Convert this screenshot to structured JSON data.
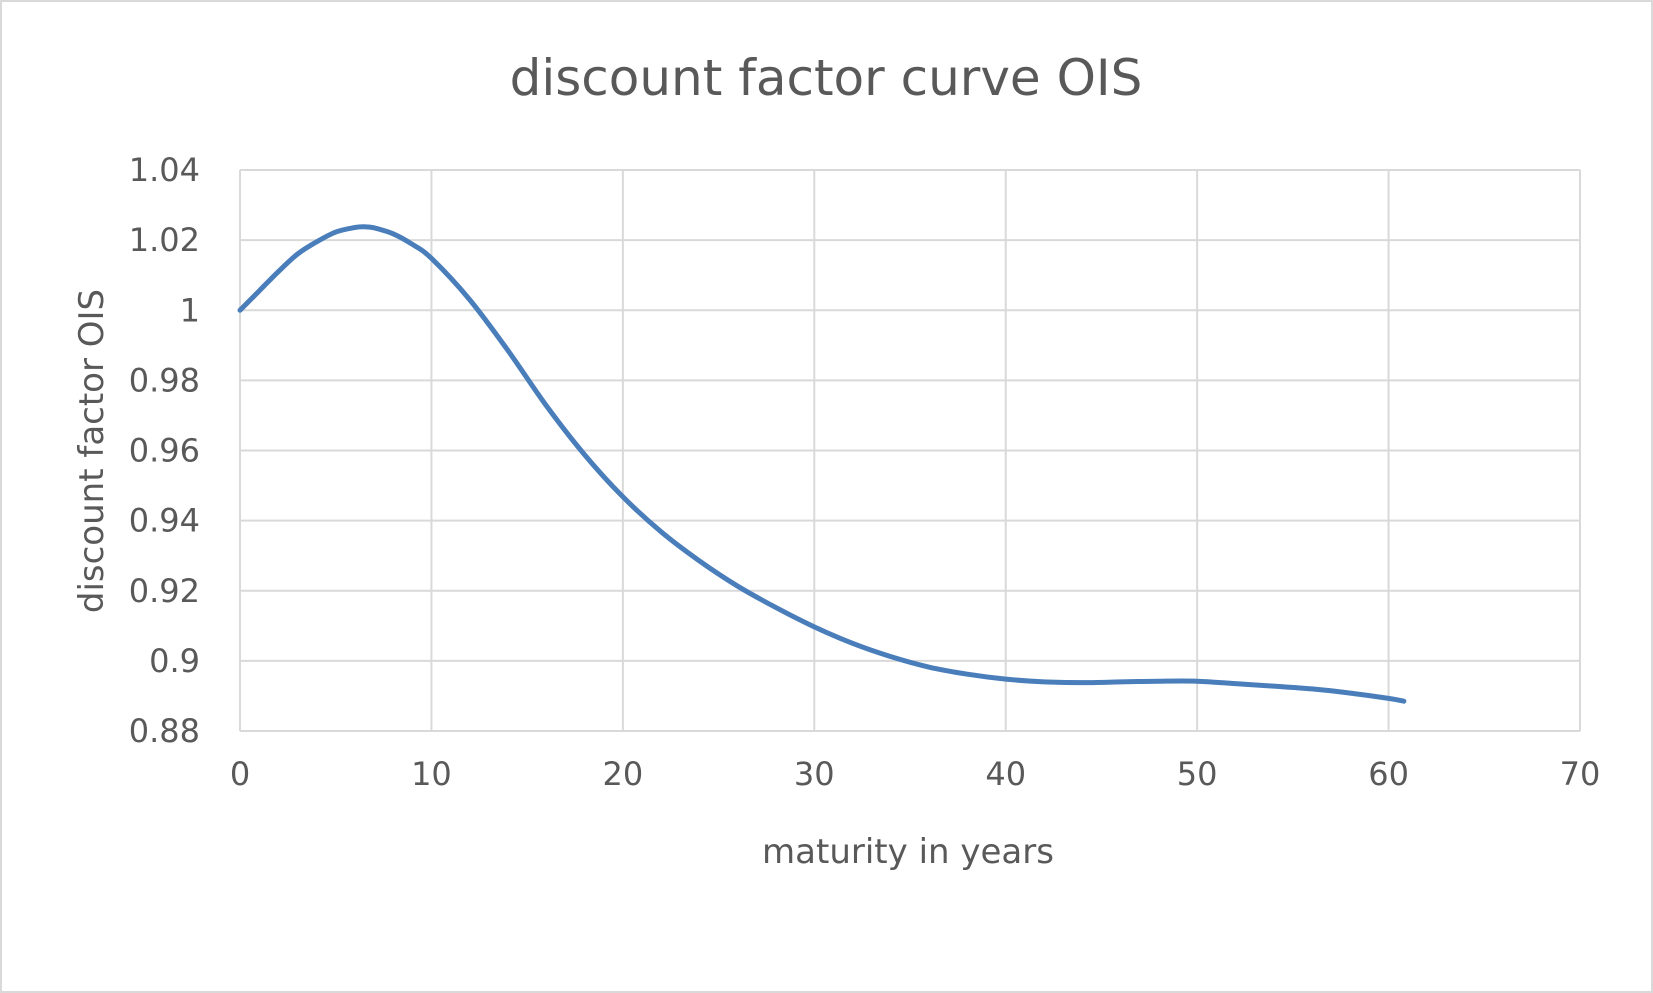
{
  "chart_data": {
    "type": "line",
    "title": "discount factor curve OIS",
    "xlabel": "maturity in years",
    "ylabel": "discount factor OIS",
    "xlim": [
      0,
      70
    ],
    "ylim": [
      0.88,
      1.04
    ],
    "x_ticks": [
      "0",
      "10",
      "20",
      "30",
      "40",
      "50",
      "60",
      "70"
    ],
    "y_ticks": [
      "1.04",
      "1.02",
      "1",
      "0.98",
      "0.96",
      "0.94",
      "0.92",
      "0.9",
      "0.88"
    ],
    "grid": true,
    "legend": "none",
    "line_color": "#4a7ebb",
    "grid_color": "#d9d9d9",
    "text_color": "#595959",
    "series": [
      {
        "x": [
          0,
          1,
          2,
          3,
          4,
          5,
          6,
          6.5,
          7,
          8,
          9,
          10,
          12,
          14,
          16,
          18,
          20,
          22,
          24,
          26,
          28,
          30,
          32,
          34,
          36,
          38,
          40,
          42,
          44,
          46,
          48,
          50,
          52,
          54,
          56,
          58,
          60,
          60.8
        ],
        "y": [
          1.0,
          1.0055,
          1.011,
          1.016,
          1.0195,
          1.0223,
          1.0236,
          1.0238,
          1.0235,
          1.0218,
          1.0188,
          1.0148,
          1.003,
          0.9885,
          0.9728,
          0.9588,
          0.9468,
          0.9368,
          0.9285,
          0.9213,
          0.9152,
          0.9097,
          0.905,
          0.9012,
          0.8982,
          0.8962,
          0.8948,
          0.894,
          0.8938,
          0.894,
          0.8942,
          0.8942,
          0.8935,
          0.8928,
          0.892,
          0.8908,
          0.8893,
          0.8885
        ]
      }
    ]
  }
}
